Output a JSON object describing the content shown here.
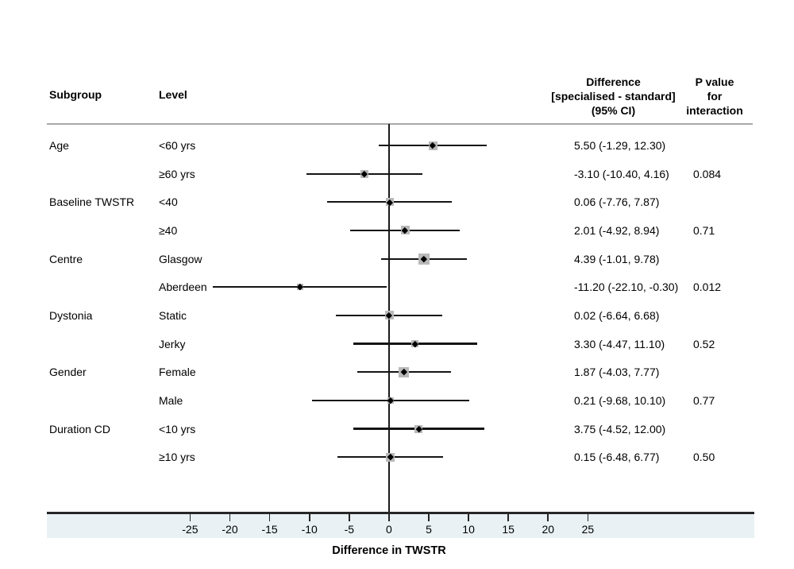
{
  "header": {
    "subgroup": "Subgroup",
    "level": "Level",
    "difference": "Difference\n[specialised - standard]\n(95% CI)",
    "pvalue": "P value\nfor\ninteraction"
  },
  "colors": {
    "marker_fill": "#b9b9b9",
    "point": "#000000",
    "ci_line": "#141414",
    "axis_line": "#262626",
    "zero_line": "#1a1a1a",
    "strip_bg": "#e9f1f4",
    "separator": "#a9a9a9"
  },
  "chart_data": {
    "type": "forest",
    "title": "",
    "xlabel": "Difference in TWSTR",
    "x_ticks": [
      -25,
      -20,
      -15,
      -10,
      -5,
      0,
      5,
      10,
      15,
      20,
      25
    ],
    "xlim": [
      -43,
      46
    ],
    "reference_line": 0,
    "grid": false,
    "rows": [
      {
        "subgroup": "Age",
        "level": "<60 yrs",
        "estimate": 5.5,
        "ci_low": -1.29,
        "ci_high": 12.3,
        "ci_text": "5.50 (-1.29, 12.30)",
        "p_value": "",
        "marker_size": 11
      },
      {
        "subgroup": "",
        "level": "≥60 yrs",
        "estimate": -3.1,
        "ci_low": -10.4,
        "ci_high": 4.16,
        "ci_text": "-3.10 (-10.40, 4.16)",
        "p_value": "0.084",
        "marker_size": 10
      },
      {
        "subgroup": "Baseline TWSTR",
        "level": "<40",
        "estimate": 0.06,
        "ci_low": -7.76,
        "ci_high": 7.87,
        "ci_text": "0.06 (-7.76, 7.87)",
        "p_value": "",
        "marker_size": 10
      },
      {
        "subgroup": "",
        "level": "≥40",
        "estimate": 2.01,
        "ci_low": -4.92,
        "ci_high": 8.94,
        "ci_text": "2.01 (-4.92, 8.94)",
        "p_value": "0.71",
        "marker_size": 11
      },
      {
        "subgroup": "Centre",
        "level": "Glasgow",
        "estimate": 4.39,
        "ci_low": -1.01,
        "ci_high": 9.78,
        "ci_text": "4.39 (-1.01, 9.78)",
        "p_value": "",
        "marker_size": 14
      },
      {
        "subgroup": "",
        "level": "Aberdeen",
        "estimate": -11.2,
        "ci_low": -22.1,
        "ci_high": -0.3,
        "ci_text": "-11.20 (-22.10, -0.30)",
        "p_value": "0.012",
        "marker_size": 8
      },
      {
        "subgroup": "Dystonia",
        "level": "Static",
        "estimate": 0.02,
        "ci_low": -6.64,
        "ci_high": 6.68,
        "ci_text": "0.02 (-6.64, 6.68)",
        "p_value": "",
        "marker_size": 11
      },
      {
        "subgroup": "",
        "level": "Jerky",
        "estimate": 3.3,
        "ci_low": -4.47,
        "ci_high": 11.1,
        "ci_text": "3.30 (-4.47, 11.10)",
        "p_value": "0.52",
        "marker_size": 9
      },
      {
        "subgroup": "Gender",
        "level": "Female",
        "estimate": 1.87,
        "ci_low": -4.03,
        "ci_high": 7.77,
        "ci_text": "1.87 (-4.03, 7.77)",
        "p_value": "",
        "marker_size": 13
      },
      {
        "subgroup": "",
        "level": "Male",
        "estimate": 0.21,
        "ci_low": -9.68,
        "ci_high": 10.1,
        "ci_text": "0.21 (-9.68, 10.10)",
        "p_value": "0.77",
        "marker_size": 8
      },
      {
        "subgroup": "Duration CD",
        "level": "<10 yrs",
        "estimate": 3.75,
        "ci_low": -4.52,
        "ci_high": 12.0,
        "ci_text": "3.75 (-4.52, 12.00)",
        "p_value": "",
        "marker_size": 10
      },
      {
        "subgroup": "",
        "level": "≥10 yrs",
        "estimate": 0.15,
        "ci_low": -6.48,
        "ci_high": 6.77,
        "ci_text": "0.15 (-6.48, 6.77)",
        "p_value": "0.50",
        "marker_size": 11
      }
    ]
  }
}
